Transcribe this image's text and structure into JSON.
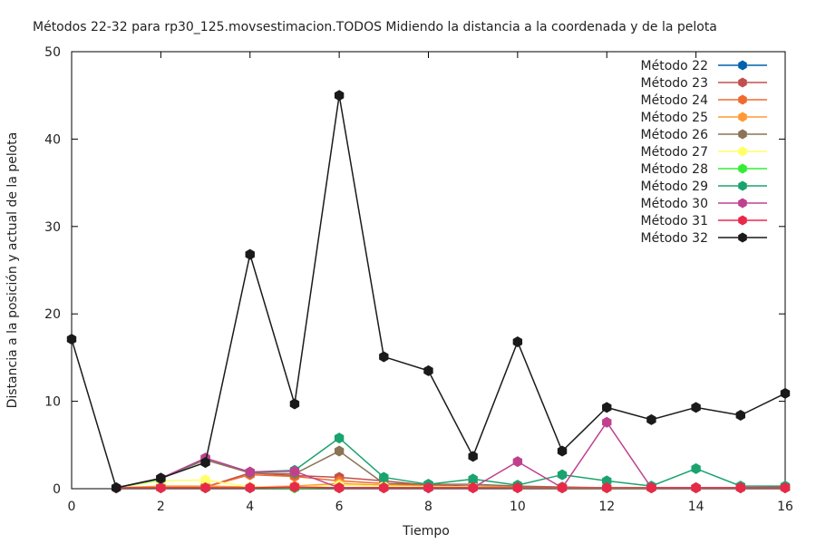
{
  "chart_data": {
    "type": "line",
    "title": "Métodos 22-32 para rp30_125.movsestimacion.TODOS Midiendo la distancia a la coordenada y de la pelota",
    "xlabel": "Tiempo",
    "ylabel": "Distancia a la posición y actual de la pelota",
    "xlim": [
      0,
      16
    ],
    "ylim": [
      0,
      50
    ],
    "x_ticks": [
      0,
      2,
      4,
      6,
      8,
      10,
      12,
      14,
      16
    ],
    "y_ticks": [
      0,
      10,
      20,
      30,
      40,
      50
    ],
    "grid": false,
    "legend_position": "top-right",
    "x": [
      0,
      1,
      2,
      3,
      4,
      5,
      6,
      7,
      8,
      9,
      10,
      11,
      12,
      13,
      14,
      15,
      16
    ],
    "series": [
      {
        "name": "Método 22",
        "color": "#0060ad",
        "values": [
          null,
          0.1,
          0.1,
          0.1,
          0.1,
          0.1,
          0.1,
          0.1,
          0.1,
          0.1,
          0.1,
          0.1,
          0.1,
          0.1,
          0.1,
          0.1,
          0.1
        ]
      },
      {
        "name": "Método 23",
        "color": "#c0504d",
        "values": [
          null,
          0.1,
          0.2,
          0.2,
          1.8,
          1.5,
          1.3,
          0.9,
          0.4,
          0.3,
          0.2,
          0.1,
          0.1,
          0.1,
          0.1,
          0.1,
          0.2
        ]
      },
      {
        "name": "Método 24",
        "color": "#f06a2e",
        "values": [
          null,
          0.1,
          0.2,
          0.2,
          1.6,
          1.4,
          0.9,
          0.6,
          0.3,
          0.2,
          0.2,
          0.1,
          0.1,
          0.1,
          0.1,
          0.1,
          0.1
        ]
      },
      {
        "name": "Método 25",
        "color": "#ff9933",
        "values": [
          null,
          0.1,
          0.3,
          0.3,
          0.2,
          0.3,
          0.6,
          0.4,
          0.3,
          0.2,
          0.2,
          0.1,
          0.1,
          0.1,
          0.1,
          0.1,
          0.1
        ]
      },
      {
        "name": "Método 26",
        "color": "#8b7355",
        "values": [
          null,
          0.1,
          1.2,
          3.3,
          1.8,
          1.7,
          4.3,
          0.6,
          0.5,
          0.5,
          0.3,
          0.2,
          0.1,
          0.1,
          0.1,
          0.1,
          0.2
        ]
      },
      {
        "name": "Método 27",
        "color": "#ffff66",
        "values": [
          null,
          0.1,
          0.9,
          1.0,
          0.2,
          0.2,
          0.4,
          0.3,
          0.2,
          0.2,
          0.1,
          0.1,
          0.1,
          0.1,
          0.1,
          0.1,
          0.1
        ]
      },
      {
        "name": "Método 28",
        "color": "#33ee33",
        "values": [
          null,
          0.1,
          0.1,
          0.1,
          0.1,
          0.1,
          0.1,
          0.1,
          0.1,
          0.1,
          0.1,
          0.1,
          0.1,
          0.1,
          0.1,
          0.1,
          0.1
        ]
      },
      {
        "name": "Método 29",
        "color": "#1aa36e",
        "values": [
          null,
          0.1,
          1.1,
          3.5,
          1.9,
          2.1,
          5.8,
          1.3,
          0.5,
          1.1,
          0.4,
          1.6,
          0.9,
          0.3,
          2.3,
          0.3,
          0.3
        ]
      },
      {
        "name": "Método 30",
        "color": "#c04090",
        "values": [
          null,
          0.1,
          1.2,
          3.5,
          1.9,
          2.0,
          0.1,
          0.1,
          0.1,
          0.1,
          3.1,
          0.1,
          7.6,
          0.1,
          0.1,
          0.1,
          0.1
        ]
      },
      {
        "name": "Método 31",
        "color": "#e8294a",
        "values": [
          null,
          0.1,
          0.1,
          0.1,
          0.1,
          0.2,
          0.1,
          0.1,
          0.1,
          0.1,
          0.1,
          0.1,
          0.1,
          0.1,
          0.1,
          0.1,
          0.1
        ]
      },
      {
        "name": "Método 32",
        "color": "#1a1a1a",
        "values": [
          17.1,
          0.1,
          1.2,
          3.0,
          26.8,
          9.7,
          45.0,
          15.1,
          13.5,
          3.7,
          16.8,
          4.3,
          9.3,
          7.9,
          9.3,
          8.4,
          10.9
        ]
      }
    ]
  }
}
